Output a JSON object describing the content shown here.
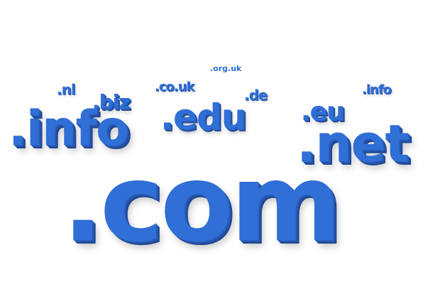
{
  "image": {
    "background_color": "#ffffff",
    "text_color": "#2f6fd6",
    "domains": {
      "com": ".com",
      "net": ".net",
      "info_large": ".info",
      "edu": ".edu",
      "eu": ".eu",
      "biz": ".biz",
      "co_uk": ".co.uk",
      "de": ".de",
      "nl": ".nl",
      "info_small": ".info",
      "org_uk": ".org.uk"
    }
  }
}
